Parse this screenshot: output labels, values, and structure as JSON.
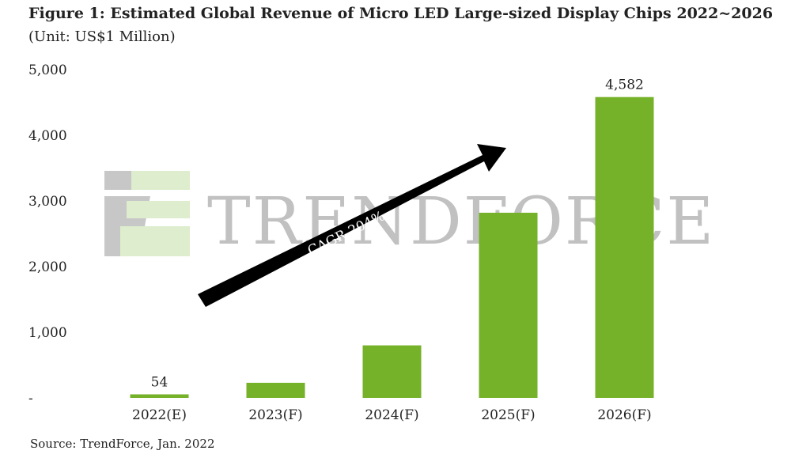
{
  "chart_data": {
    "type": "bar",
    "title": "Figure 1: Estimated Global Revenue of Micro LED Large-sized Display Chips 2022~2026",
    "subtitle": "(Unit: US$1 Million)",
    "categories": [
      "2022(E)",
      "2023(F)",
      "2024(F)",
      "2025(F)",
      "2026(F)"
    ],
    "values": [
      54,
      230,
      800,
      2820,
      4582
    ],
    "data_labels": [
      "54",
      "",
      "",
      "",
      "4,582"
    ],
    "yticks": [
      {
        "value": 0,
        "label": "-"
      },
      {
        "value": 1000,
        "label": "1,000"
      },
      {
        "value": 2000,
        "label": "2,000"
      },
      {
        "value": 3000,
        "label": "3,000"
      },
      {
        "value": 4000,
        "label": "4,000"
      },
      {
        "value": 5000,
        "label": "5,000"
      }
    ],
    "ylim": [
      0,
      5000
    ],
    "xlabel": "",
    "ylabel": "",
    "grid": false,
    "bar_color": "#76b12a",
    "annotation": "CAGR 204%",
    "watermark": "TRENDFORCE",
    "source": "Source: TrendForce, Jan. 2022"
  }
}
